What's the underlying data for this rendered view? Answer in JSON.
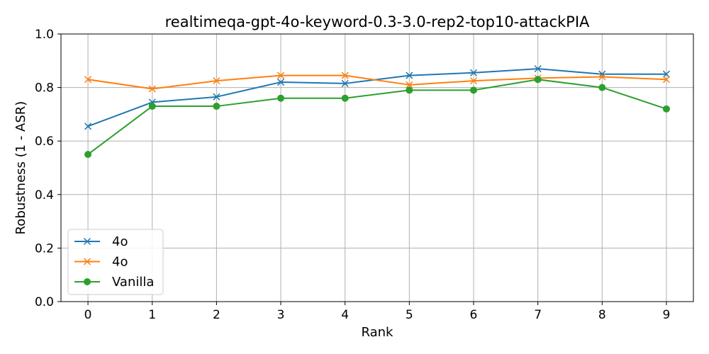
{
  "chart_data": {
    "type": "line",
    "title": "realtimeqa-gpt-4o-keyword-0.3-3.0-rep2-top10-attackPIA",
    "xlabel": "Rank",
    "ylabel": "Robustness (1 - ASR)",
    "x": [
      0,
      1,
      2,
      3,
      4,
      5,
      6,
      7,
      8,
      9
    ],
    "xlim": [
      -0.42,
      9.42
    ],
    "ylim": [
      0.0,
      1.0
    ],
    "xticks": [
      0,
      1,
      2,
      3,
      4,
      5,
      6,
      7,
      8,
      9
    ],
    "yticks": [
      0.0,
      0.2,
      0.4,
      0.6,
      0.8,
      1.0
    ],
    "ytick_labels": [
      "0.0",
      "0.2",
      "0.4",
      "0.6",
      "0.8",
      "1.0"
    ],
    "grid": true,
    "legend_position": "lower-left",
    "series": [
      {
        "name": "4o",
        "color": "#1f77b4",
        "marker": "x",
        "values": [
          0.655,
          0.745,
          0.765,
          0.82,
          0.815,
          0.845,
          0.855,
          0.87,
          0.85,
          0.85
        ]
      },
      {
        "name": "4o",
        "color": "#ff7f0e",
        "marker": "x",
        "values": [
          0.83,
          0.795,
          0.825,
          0.845,
          0.845,
          0.81,
          0.825,
          0.835,
          0.84,
          0.83
        ]
      },
      {
        "name": "Vanilla",
        "color": "#2ca02c",
        "marker": "o",
        "values": [
          0.55,
          0.73,
          0.73,
          0.76,
          0.76,
          0.79,
          0.79,
          0.83,
          0.8,
          0.72
        ]
      }
    ]
  }
}
